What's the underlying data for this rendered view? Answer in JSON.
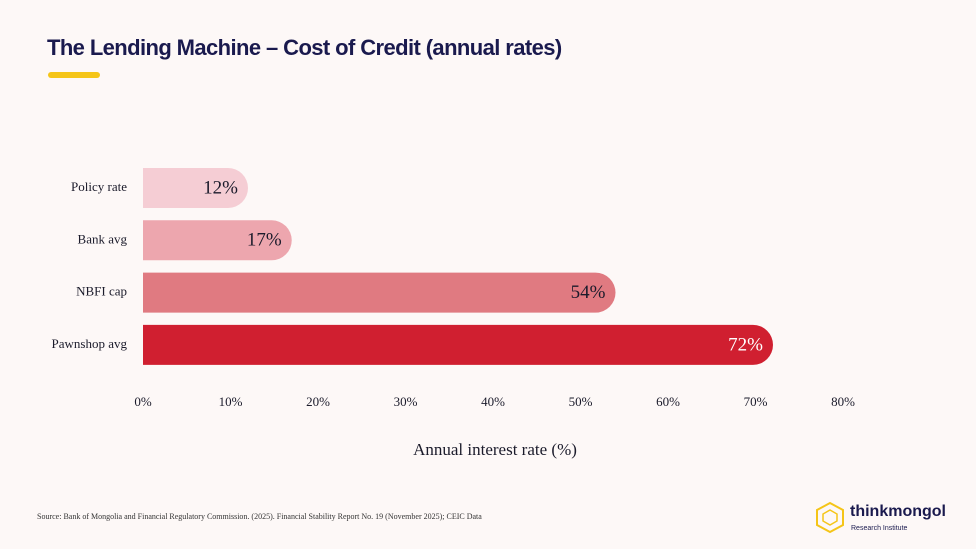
{
  "chart_data": {
    "type": "bar",
    "orientation": "horizontal",
    "title": "The Lending Machine – Cost of Credit (annual rates)",
    "xlabel": "Annual interest rate (%)",
    "categories": [
      "Policy rate",
      "Bank avg",
      "NBFI cap",
      "Pawnshop avg"
    ],
    "values": [
      12,
      17,
      54,
      72
    ],
    "value_labels": [
      "12%",
      "17%",
      "54%",
      "72%"
    ],
    "colors": [
      "#f5cdd4",
      "#eda6ae",
      "#e07a81",
      "#d01f30"
    ],
    "xlim": [
      0,
      80
    ],
    "xticks": [
      {
        "value": 0,
        "label": "0%"
      },
      {
        "value": 10,
        "label": "10%"
      },
      {
        "value": 20,
        "label": "20%"
      },
      {
        "value": 30,
        "label": "30%"
      },
      {
        "value": 40,
        "label": "40%"
      },
      {
        "value": 50,
        "label": "50%"
      },
      {
        "value": 60,
        "label": "60%"
      },
      {
        "value": 70,
        "label": "70%"
      },
      {
        "value": 80,
        "label": "80%"
      }
    ],
    "grid": false
  },
  "source": "Source: Bank of Mongolia and Financial Regulatory Commission. (2025). Financial Stability Report No. 19 (November 2025); CEIC Data",
  "logo": {
    "name": "thinkmongol",
    "subtitle": "Research Institute"
  }
}
